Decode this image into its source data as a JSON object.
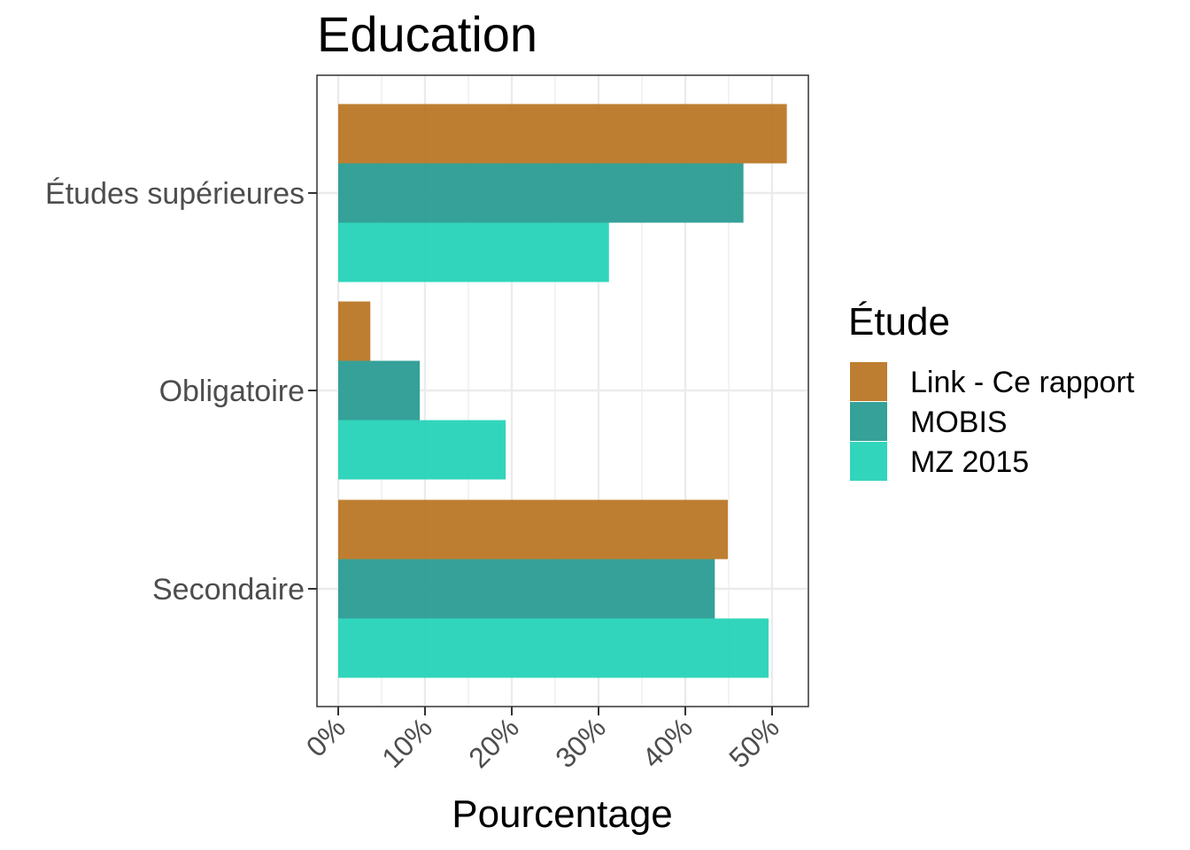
{
  "chart_data": {
    "type": "bar",
    "orientation": "horizontal",
    "title": "Education",
    "xlabel": "Pourcentage",
    "ylabel": "",
    "xlim": [
      0,
      0.54
    ],
    "x_ticks": [
      0,
      0.1,
      0.2,
      0.3,
      0.4,
      0.5
    ],
    "x_tick_labels": [
      "0%",
      "10%",
      "20%",
      "30%",
      "40%",
      "50%"
    ],
    "categories": [
      "Études supérieures",
      "Obligatoire",
      "Secondaire"
    ],
    "series": [
      {
        "name": "Link - Ce rapport",
        "color": "#b8731f",
        "values": [
          0.517,
          0.037,
          0.449
        ]
      },
      {
        "name": "MOBIS",
        "color": "#24998f",
        "values": [
          0.467,
          0.094,
          0.434
        ]
      },
      {
        "name": "MZ 2015",
        "color": "#1fd1b5",
        "values": [
          0.312,
          0.193,
          0.496
        ]
      }
    ],
    "legend": {
      "title": "Étude",
      "position": "right"
    },
    "grid": true
  }
}
